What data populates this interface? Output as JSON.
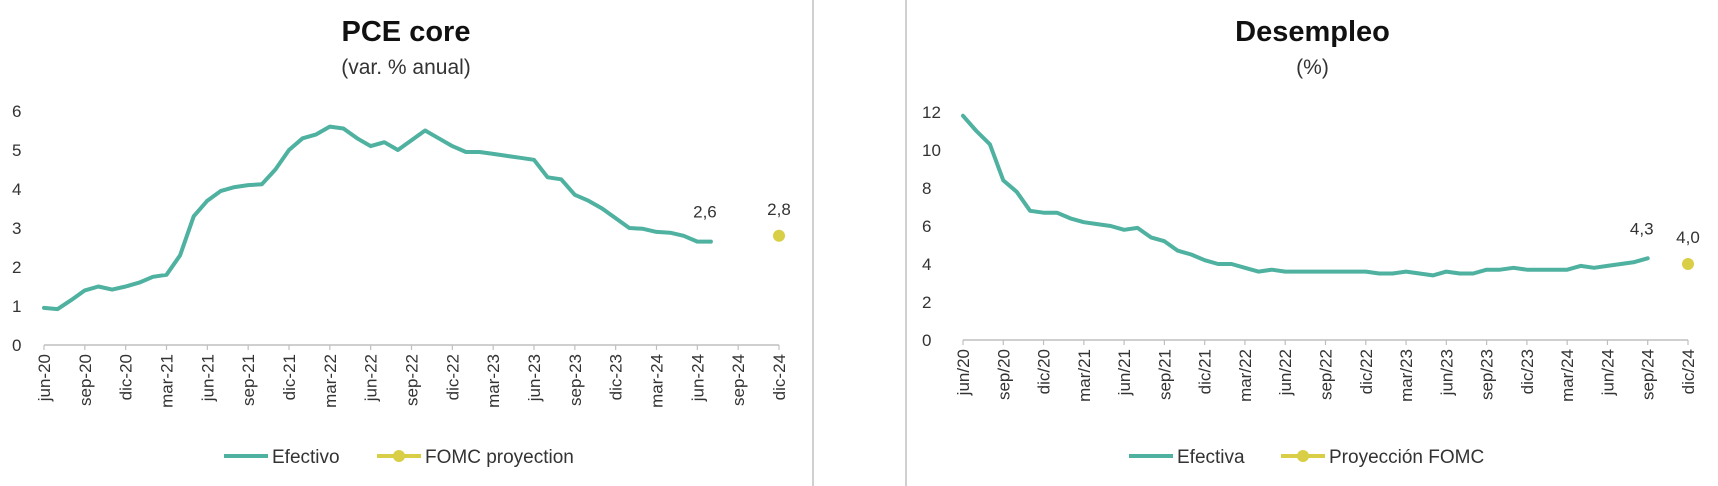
{
  "colors": {
    "line": "#4fb1a0",
    "projection": "#d8cf47",
    "axis": "#bfbfbf",
    "text": "#333333"
  },
  "chart_data": [
    {
      "type": "line",
      "title": "PCE core",
      "subtitle": "(var. % anual)",
      "ylim": [
        0,
        6
      ],
      "yticks": [
        0,
        1,
        2,
        3,
        4,
        5,
        6
      ],
      "xtick_labels": [
        "jun-20",
        "sep-20",
        "dic-20",
        "mar-21",
        "jun-21",
        "sep-21",
        "dic-21",
        "mar-22",
        "jun-22",
        "sep-22",
        "dic-22",
        "mar-23",
        "jun-23",
        "sep-23",
        "dic-23",
        "mar-24",
        "jun-24",
        "sep-24",
        "dic-24"
      ],
      "n_periods": 55,
      "grid": false,
      "legend_position": "bottom",
      "series": [
        {
          "name": "Efectivo",
          "values": [
            0.95,
            0.92,
            1.15,
            1.4,
            1.5,
            1.42,
            1.5,
            1.6,
            1.75,
            1.8,
            2.3,
            3.3,
            3.7,
            3.95,
            4.05,
            4.1,
            4.12,
            4.5,
            5.0,
            5.3,
            5.4,
            5.6,
            5.55,
            5.3,
            5.1,
            5.2,
            5.0,
            5.25,
            5.5,
            5.3,
            5.1,
            4.95,
            4.95,
            4.9,
            4.85,
            4.8,
            4.75,
            4.3,
            4.25,
            3.85,
            3.7,
            3.5,
            3.25,
            3.0,
            2.98,
            2.9,
            2.88,
            2.8,
            2.65,
            2.65
          ],
          "label": "2,6"
        },
        {
          "name": "FOMC proyection",
          "points": [
            {
              "x": "dic-24",
              "y": 2.8
            }
          ],
          "label": "2,8"
        }
      ]
    },
    {
      "type": "line",
      "title": "Desempleo",
      "subtitle": "(%)",
      "ylim": [
        0,
        12
      ],
      "yticks": [
        0,
        2,
        4,
        6,
        8,
        10,
        12
      ],
      "xtick_labels": [
        "jun/20",
        "sep/20",
        "dic/20",
        "mar/21",
        "jun/21",
        "sep/21",
        "dic/21",
        "mar/22",
        "jun/22",
        "sep/22",
        "dic/22",
        "mar/23",
        "jun/23",
        "sep/23",
        "dic/23",
        "mar/24",
        "jun/24",
        "sep/24",
        "dic/24"
      ],
      "n_periods": 55,
      "grid": false,
      "legend_position": "bottom",
      "series": [
        {
          "name": "Efectiva",
          "values": [
            11.8,
            11.0,
            10.3,
            8.4,
            7.8,
            6.8,
            6.7,
            6.7,
            6.4,
            6.2,
            6.1,
            6.0,
            5.8,
            5.9,
            5.4,
            5.2,
            4.7,
            4.5,
            4.2,
            4.0,
            4.0,
            3.8,
            3.6,
            3.7,
            3.6,
            3.6,
            3.6,
            3.6,
            3.6,
            3.6,
            3.6,
            3.5,
            3.5,
            3.6,
            3.5,
            3.4,
            3.6,
            3.5,
            3.5,
            3.7,
            3.7,
            3.8,
            3.7,
            3.7,
            3.7,
            3.7,
            3.9,
            3.8,
            3.9,
            4.0,
            4.1,
            4.3
          ],
          "label": "4,3"
        },
        {
          "name": "Proyección FOMC",
          "points": [
            {
              "x": "dic/24",
              "y": 4.0
            }
          ],
          "label": "4,0"
        }
      ]
    }
  ]
}
